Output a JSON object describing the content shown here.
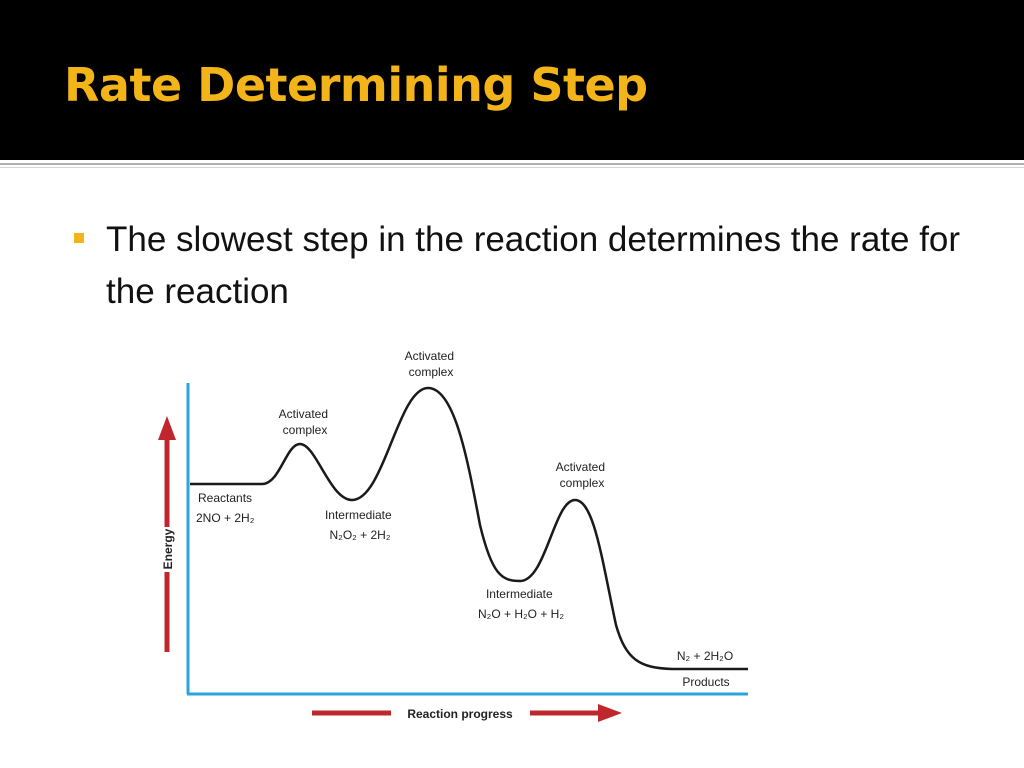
{
  "slide": {
    "title": "Rate Determining Step",
    "bullet": "The slowest step in the reaction determines the rate for the reaction"
  },
  "diagram": {
    "y_axis_label": "Energy",
    "x_axis_label": "Reaction progress",
    "labels": {
      "activated_complex_1": [
        "Activated",
        "complex"
      ],
      "activated_complex_2": [
        "Activated",
        "complex"
      ],
      "activated_complex_3": [
        "Activated",
        "complex"
      ],
      "reactants": [
        "Reactants",
        "2NO + 2H₂"
      ],
      "intermediate_1": [
        "Intermediate",
        "N₂O₂ + 2H₂"
      ],
      "intermediate_2": [
        "Intermediate",
        "N₂O + H₂O + H₂"
      ],
      "products_formula": "N₂ + 2H₂O",
      "products": "Products"
    }
  },
  "colors": {
    "title": "#f2b418",
    "bullet_marker": "#f2b418",
    "axis": "#2aa5dc",
    "arrow": "#c0272d",
    "curve": "#1a1a1a"
  }
}
